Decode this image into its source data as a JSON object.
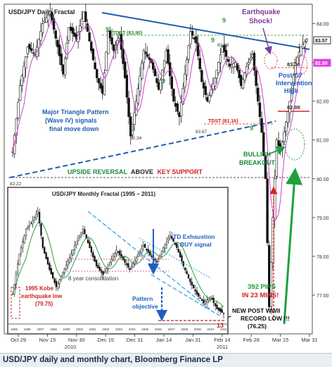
{
  "chart_data": [
    {
      "type": "candlestick",
      "title": "USD/JPY Daily Fractal",
      "x_tick_labels": [
        "Oct 29",
        "Nov 15",
        "Nov 30",
        "Dec 15",
        "Dec 31",
        "Jan 14",
        "Jan 31",
        "Feb 14",
        "Feb 28",
        "Mar 15",
        "Mar 31"
      ],
      "x_year_labels": [
        "2010",
        "2011"
      ],
      "y_tick_labels": [
        "84.00",
        "83.00",
        "82.00",
        "81.00",
        "80.00",
        "79.00",
        "78.00",
        "77.00"
      ],
      "ylim": [
        76.0,
        84.5
      ],
      "y_tags": [
        {
          "label": "83.57",
          "value": 83.57,
          "color": "#ffffff"
        },
        {
          "label": "82.99",
          "value": 82.99,
          "color": "#e040e0"
        }
      ],
      "price_path": [
        [
          0,
          80.7
        ],
        [
          4,
          82.4
        ],
        [
          8,
          83.4
        ],
        [
          12,
          83.2
        ],
        [
          16,
          84.0
        ],
        [
          20,
          84.3
        ],
        [
          24,
          83.4
        ],
        [
          27,
          82.7
        ],
        [
          30,
          83.9
        ],
        [
          34,
          83.6
        ],
        [
          38,
          84.3
        ],
        [
          42,
          83.3
        ],
        [
          45,
          82.6
        ],
        [
          48,
          82.2
        ],
        [
          51,
          83.8
        ],
        [
          54,
          83.3
        ],
        [
          57,
          83.7
        ],
        [
          60,
          82.6
        ],
        [
          63,
          81.1
        ],
        [
          66,
          82.0
        ],
        [
          70,
          83.3
        ],
        [
          74,
          83.0
        ],
        [
          78,
          82.3
        ],
        [
          82,
          83.3
        ],
        [
          86,
          82.0
        ],
        [
          89,
          81.6
        ],
        [
          92,
          82.7
        ],
        [
          95,
          83.8
        ],
        [
          98,
          83.5
        ],
        [
          101,
          82.5
        ],
        [
          104,
          82.0
        ],
        [
          108,
          82.6
        ],
        [
          112,
          83.4
        ],
        [
          116,
          82.9
        ],
        [
          119,
          83.0
        ],
        [
          122,
          82.4
        ],
        [
          125,
          82.9
        ],
        [
          128,
          83.2
        ],
        [
          131,
          82.0
        ],
        [
          133,
          81.2
        ],
        [
          135,
          80.0
        ],
        [
          137,
          76.7
        ],
        [
          139,
          79.0
        ],
        [
          141,
          81.0
        ],
        [
          143,
          80.7
        ],
        [
          145,
          81.2
        ],
        [
          148,
          82.0
        ],
        [
          151,
          83.0
        ],
        [
          154,
          83.4
        ],
        [
          157,
          83.6
        ]
      ],
      "labels": {
        "tdst_top": "TDST (83.90)",
        "tdst_mid": "TDST (81.16)",
        "p88": "83.88",
        "p34": "82.34",
        "p87": "83.87",
        "p81": "82.22",
        "p833": "83.30",
        "p82": "82.00",
        "nine_a": "9",
        "nine_b": "9",
        "nine_c": "9",
        "nine_d": "9",
        "nine_e": "9",
        "nine_f": "9",
        "r13": "13",
        "quake": "Earthquake Shock!",
        "post_g7": "Post G7 Intervention High",
        "triangle": "Major Triangle Pattern (Wave IV) signals final move down",
        "bullish": "BULLISH BREAKOUT",
        "upside_a": "UPSIDE REVERSAL",
        "upside_b": "ABOVE",
        "upside_c": "KEY SUPPORT",
        "pips": "392 PIPS IN 23 MINS!",
        "record": "NEW POST WWII RECORD LOW !!! (76.25)"
      }
    },
    {
      "type": "candlestick",
      "title": "USD/JPY Monthly Fractal  (1995 – 2011)",
      "x_tick_labels": [
        "1995",
        "1996",
        "1997",
        "1998",
        "1999",
        "2000",
        "2001",
        "2002",
        "2003",
        "2004",
        "2005",
        "2006",
        "2007",
        "2008",
        "2009",
        "2010",
        "2011"
      ],
      "price_path": [
        [
          0,
          0.78
        ],
        [
          4,
          0.45
        ],
        [
          8,
          0.25
        ],
        [
          12,
          0.18
        ],
        [
          15,
          0.1
        ],
        [
          18,
          0.4
        ],
        [
          22,
          0.58
        ],
        [
          26,
          0.72
        ],
        [
          30,
          0.6
        ],
        [
          34,
          0.48
        ],
        [
          38,
          0.35
        ],
        [
          42,
          0.25
        ],
        [
          46,
          0.4
        ],
        [
          50,
          0.55
        ],
        [
          54,
          0.62
        ],
        [
          58,
          0.52
        ],
        [
          62,
          0.42
        ],
        [
          66,
          0.5
        ],
        [
          70,
          0.58
        ],
        [
          74,
          0.48
        ],
        [
          78,
          0.38
        ],
        [
          82,
          0.46
        ],
        [
          86,
          0.52
        ],
        [
          90,
          0.4
        ],
        [
          94,
          0.3
        ],
        [
          98,
          0.4
        ],
        [
          102,
          0.55
        ],
        [
          106,
          0.68
        ],
        [
          110,
          0.78
        ],
        [
          114,
          0.85
        ],
        [
          118,
          0.8
        ],
        [
          122,
          0.9
        ],
        [
          126,
          0.94
        ]
      ],
      "labels": {
        "kobe": "1995 Kobe earthquake low (79.75)",
        "consol": "8 year consolidation",
        "td": "TD Exhaustion BUY signal",
        "pattern": "Pattern objective",
        "m13": "13"
      }
    }
  ],
  "caption": "USD/JPY daily and monthly chart, Bloomberg Finance LP"
}
